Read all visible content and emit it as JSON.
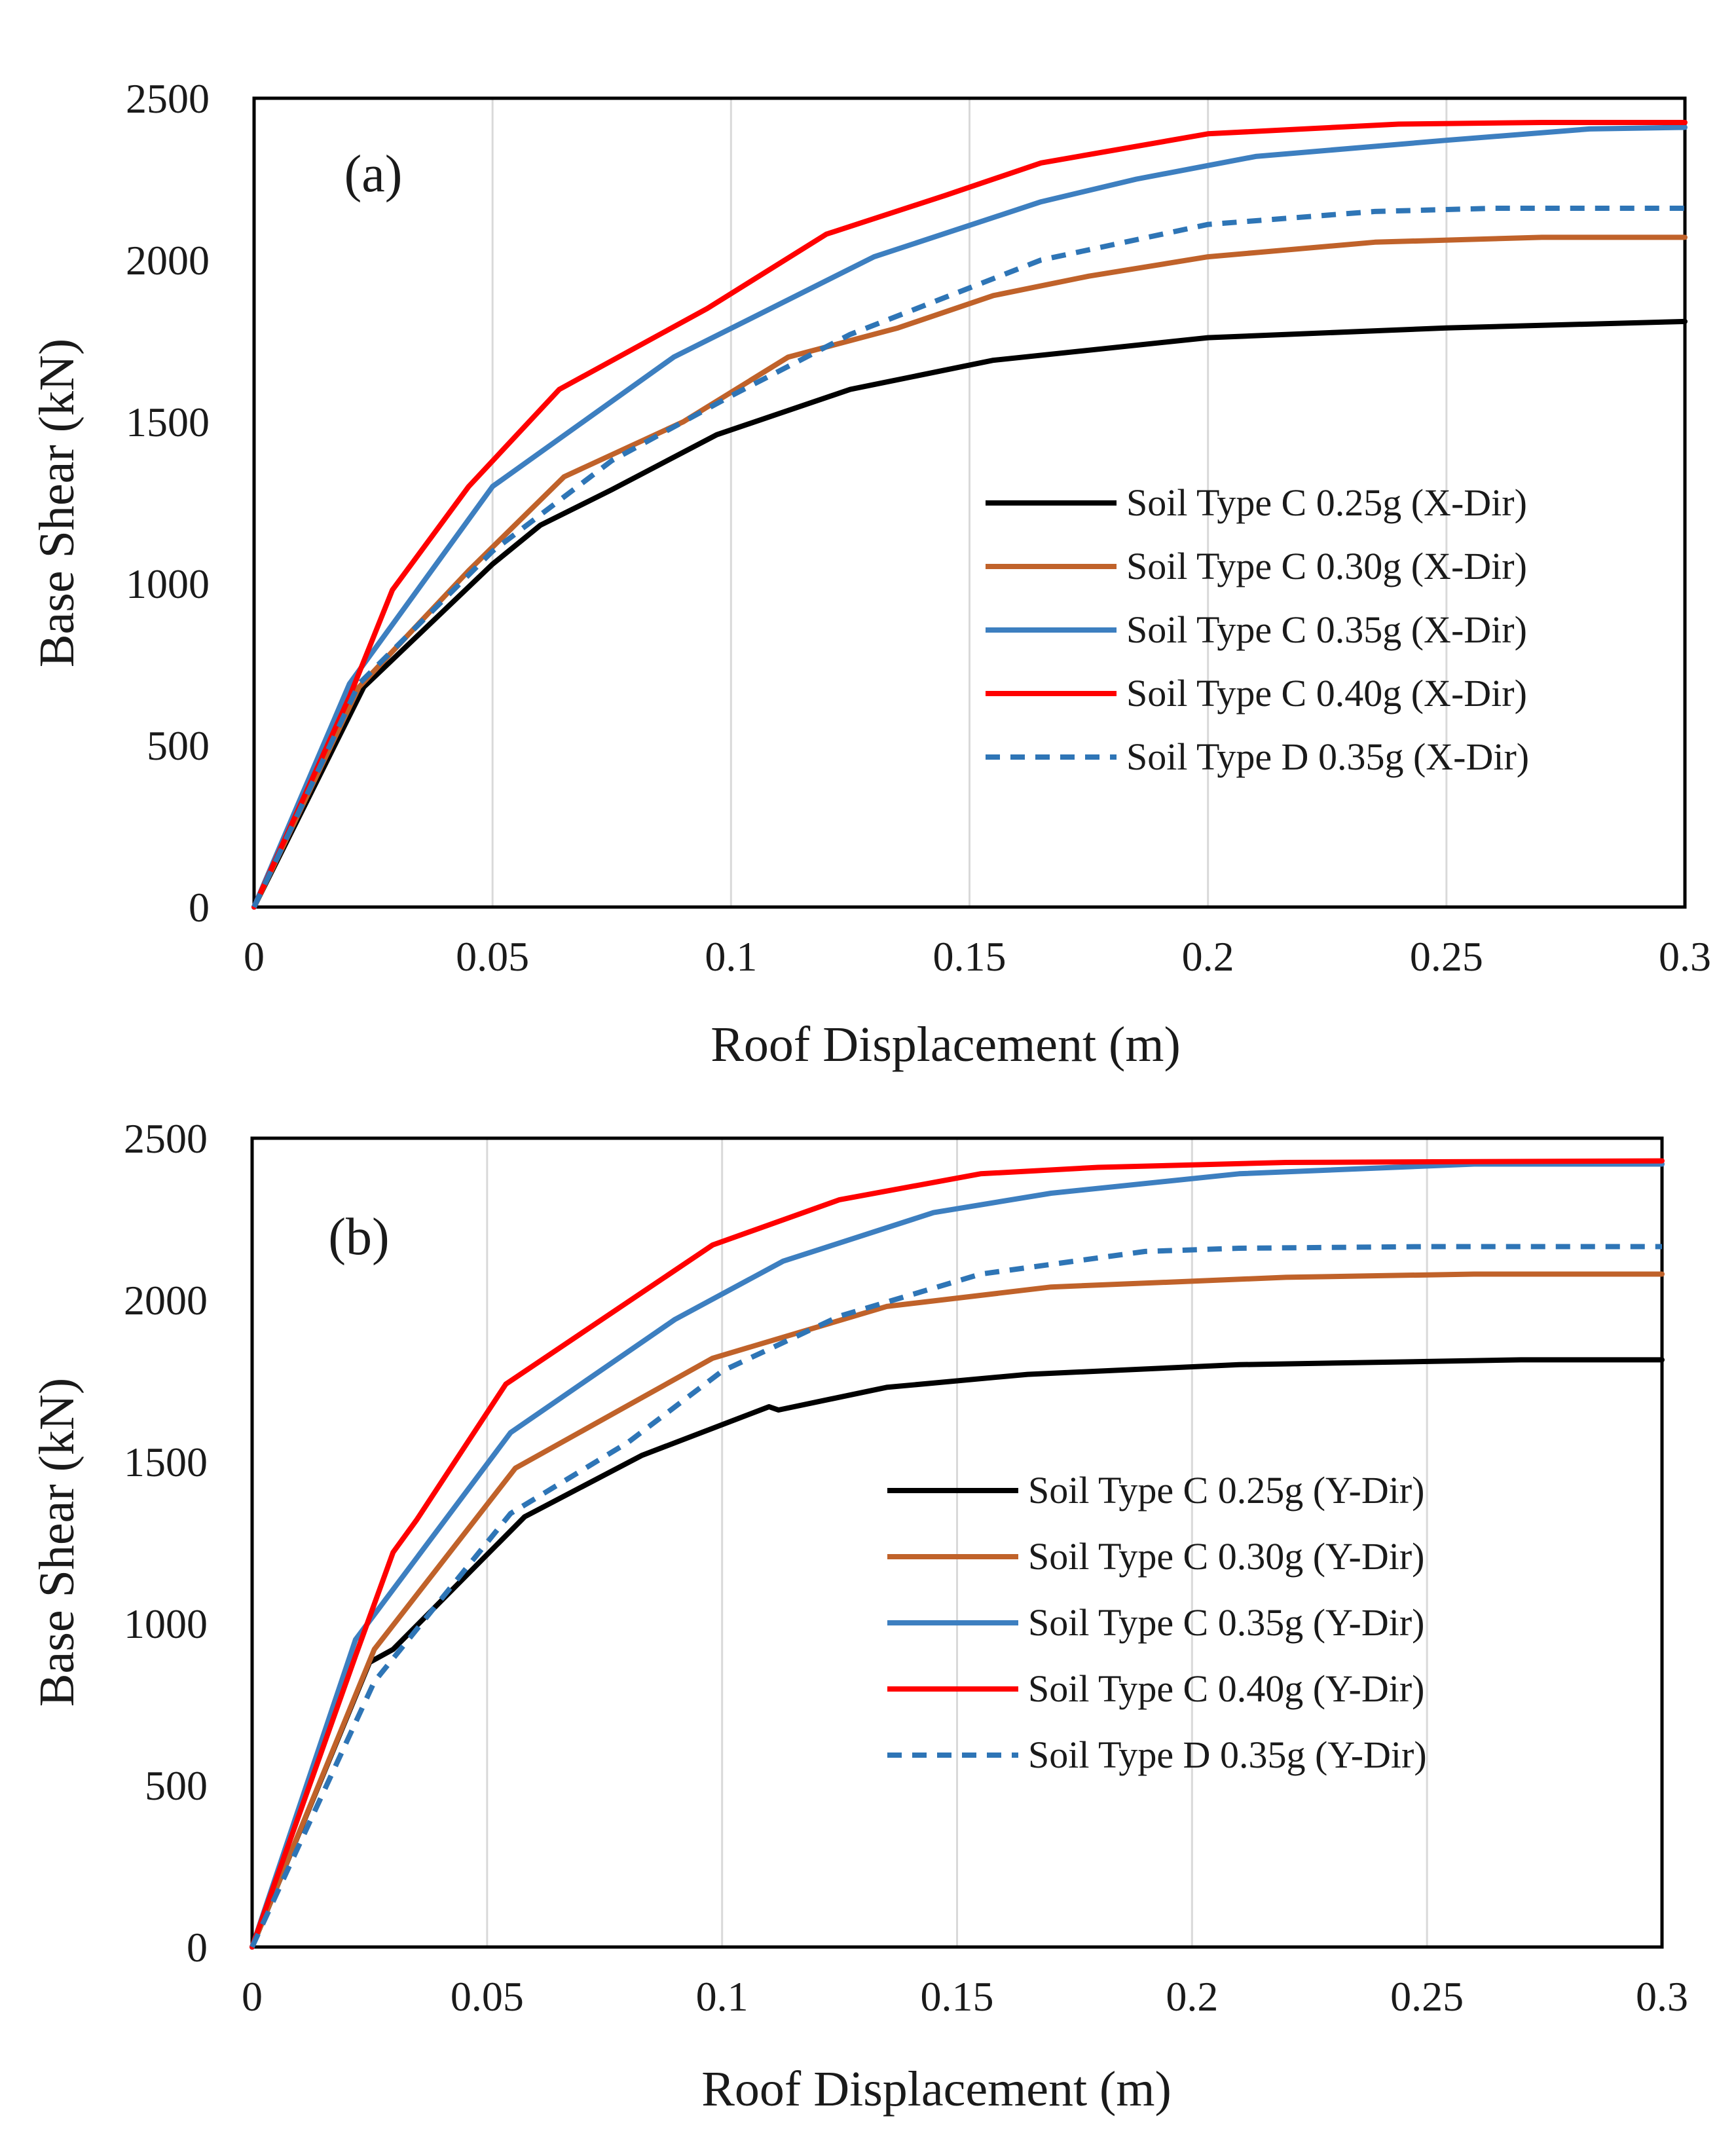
{
  "chart_data": [
    {
      "type": "line",
      "panel_label": "(a)",
      "xlabel": "Roof Displacement (m)",
      "ylabel": "Base Shear (kN)",
      "xlim": [
        0,
        0.3
      ],
      "ylim": [
        0,
        2500
      ],
      "xticks": [
        0,
        0.05,
        0.1,
        0.15,
        0.2,
        0.25,
        0.3
      ],
      "xtick_labels": [
        "0",
        "0.05",
        "0.1",
        "0.15",
        "0.2",
        "0.25",
        "0.3"
      ],
      "yticks": [
        0,
        500,
        1000,
        1500,
        2000,
        2500
      ],
      "ytick_labels": [
        "0",
        "500",
        "1000",
        "1500",
        "2000",
        "2500"
      ],
      "grid": "vertical",
      "legend_position": "center-right",
      "series": [
        {
          "name": "Soil Type C 0.25g (X-Dir)",
          "color": "#000000",
          "dash": "solid",
          "x": [
            0,
            0.023,
            0.05,
            0.06,
            0.075,
            0.097,
            0.125,
            0.155,
            0.2,
            0.25,
            0.3
          ],
          "y": [
            0,
            680,
            1060,
            1180,
            1290,
            1460,
            1600,
            1690,
            1760,
            1790,
            1810
          ]
        },
        {
          "name": "Soil Type C 0.30g (X-Dir)",
          "color": "#c0622a",
          "dash": "solid",
          "x": [
            0,
            0.022,
            0.045,
            0.065,
            0.09,
            0.112,
            0.135,
            0.155,
            0.175,
            0.2,
            0.235,
            0.27,
            0.3
          ],
          "y": [
            0,
            680,
            1040,
            1330,
            1500,
            1700,
            1790,
            1890,
            1950,
            2010,
            2055,
            2070,
            2070
          ]
        },
        {
          "name": "Soil Type C 0.35g (X-Dir)",
          "color": "#3d7fc0",
          "dash": "solid",
          "x": [
            0,
            0.02,
            0.05,
            0.088,
            0.13,
            0.165,
            0.185,
            0.21,
            0.25,
            0.28,
            0.3
          ],
          "y": [
            0,
            690,
            1300,
            1700,
            2010,
            2180,
            2250,
            2320,
            2370,
            2405,
            2410
          ]
        },
        {
          "name": "Soil Type C 0.40g (X-Dir)",
          "color": "#ff0000",
          "dash": "solid",
          "x": [
            0,
            0.02,
            0.029,
            0.045,
            0.064,
            0.095,
            0.12,
            0.145,
            0.165,
            0.2,
            0.24,
            0.27,
            0.3
          ],
          "y": [
            0,
            650,
            980,
            1300,
            1600,
            1850,
            2080,
            2200,
            2300,
            2390,
            2420,
            2425,
            2425
          ]
        },
        {
          "name": "Soil Type D 0.35g (X-Dir)",
          "color": "#2e75b6",
          "dash": "dashed",
          "x": [
            0,
            0.022,
            0.05,
            0.075,
            0.1,
            0.125,
            0.165,
            0.2,
            0.235,
            0.26,
            0.3
          ],
          "y": [
            0,
            690,
            1100,
            1380,
            1580,
            1770,
            2000,
            2110,
            2150,
            2160,
            2160
          ]
        }
      ]
    },
    {
      "type": "line",
      "panel_label": "(b)",
      "xlabel": "Roof Displacement (m)",
      "ylabel": "Base Shear (kN)",
      "xlim": [
        0,
        0.3
      ],
      "ylim": [
        0,
        2500
      ],
      "xticks": [
        0,
        0.05,
        0.1,
        0.15,
        0.2,
        0.25,
        0.3
      ],
      "xtick_labels": [
        "0",
        "0.05",
        "0.1",
        "0.15",
        "0.2",
        "0.25",
        "0.3"
      ],
      "yticks": [
        0,
        500,
        1000,
        1500,
        2000,
        2500
      ],
      "ytick_labels": [
        "0",
        "500",
        "1000",
        "1500",
        "2000",
        "2500"
      ],
      "grid": "vertical",
      "legend_position": "center-right",
      "series": [
        {
          "name": "Soil Type C 0.25g (Y-Dir)",
          "color": "#000000",
          "dash": "solid",
          "x": [
            0,
            0.025,
            0.03,
            0.058,
            0.083,
            0.11,
            0.112,
            0.135,
            0.165,
            0.21,
            0.27,
            0.3
          ],
          "y": [
            0,
            880,
            920,
            1330,
            1520,
            1670,
            1660,
            1730,
            1770,
            1800,
            1815,
            1815
          ]
        },
        {
          "name": "Soil Type C 0.30g (Y-Dir)",
          "color": "#c0622a",
          "dash": "solid",
          "x": [
            0,
            0.026,
            0.056,
            0.098,
            0.135,
            0.17,
            0.22,
            0.26,
            0.3
          ],
          "y": [
            0,
            920,
            1480,
            1820,
            1980,
            2040,
            2070,
            2080,
            2080
          ]
        },
        {
          "name": "Soil Type C 0.35g (Y-Dir)",
          "color": "#3d7fc0",
          "dash": "solid",
          "x": [
            0,
            0.022,
            0.055,
            0.09,
            0.113,
            0.145,
            0.17,
            0.21,
            0.26,
            0.3
          ],
          "y": [
            0,
            950,
            1590,
            1940,
            2120,
            2270,
            2330,
            2390,
            2420,
            2420
          ]
        },
        {
          "name": "Soil Type C 0.40g (Y-Dir)",
          "color": "#ff0000",
          "dash": "solid",
          "x": [
            0,
            0.022,
            0.03,
            0.035,
            0.054,
            0.098,
            0.125,
            0.155,
            0.18,
            0.22,
            0.3
          ],
          "y": [
            0,
            900,
            1220,
            1320,
            1740,
            2170,
            2310,
            2390,
            2410,
            2425,
            2430
          ]
        },
        {
          "name": "Soil Type D 0.35g (Y-Dir)",
          "color": "#2e75b6",
          "dash": "dashed",
          "x": [
            0,
            0.026,
            0.055,
            0.08,
            0.1,
            0.125,
            0.155,
            0.19,
            0.21,
            0.25,
            0.3
          ],
          "y": [
            0,
            820,
            1340,
            1560,
            1780,
            1950,
            2080,
            2150,
            2160,
            2165,
            2165
          ]
        }
      ]
    }
  ]
}
